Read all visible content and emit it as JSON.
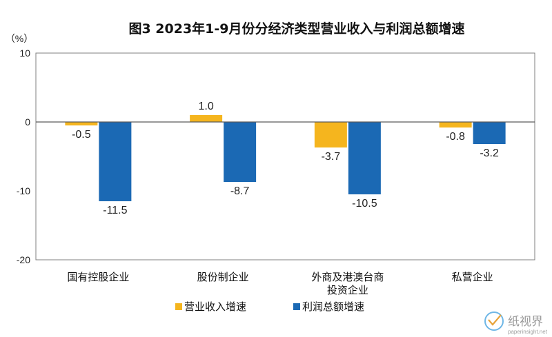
{
  "chart_data": {
    "type": "bar",
    "title": "图3  2023年1-9月份分经济类型营业收入与利润总额增速",
    "unit_label": "（%）",
    "categories": [
      "国有控股企业",
      "股份制企业",
      "外商及港澳台商投资企业",
      "私营企业"
    ],
    "category_lines": [
      [
        "国有控股企业"
      ],
      [
        "股份制企业"
      ],
      [
        "外商及港澳台商",
        "投资企业"
      ],
      [
        "私营企业"
      ]
    ],
    "series": [
      {
        "name": "营业收入增速",
        "values": [
          -0.5,
          1.0,
          -3.7,
          -0.8
        ],
        "labels": [
          "-0.5",
          "1.0",
          "-3.7",
          "-0.8"
        ],
        "color": "#F5B51E"
      },
      {
        "name": "利润总额增速",
        "values": [
          -11.5,
          -8.7,
          -10.5,
          -3.2
        ],
        "labels": [
          "-11.5",
          "-8.7",
          "-10.5",
          "-3.2"
        ],
        "color": "#1B69B4"
      }
    ],
    "ylim": [
      -20,
      10
    ],
    "yticks": [
      10,
      0,
      -10,
      -20
    ],
    "legend_position": "bottom",
    "grid": false
  },
  "watermark": {
    "text": "纸视界",
    "subtext": "paperinsight.net"
  }
}
